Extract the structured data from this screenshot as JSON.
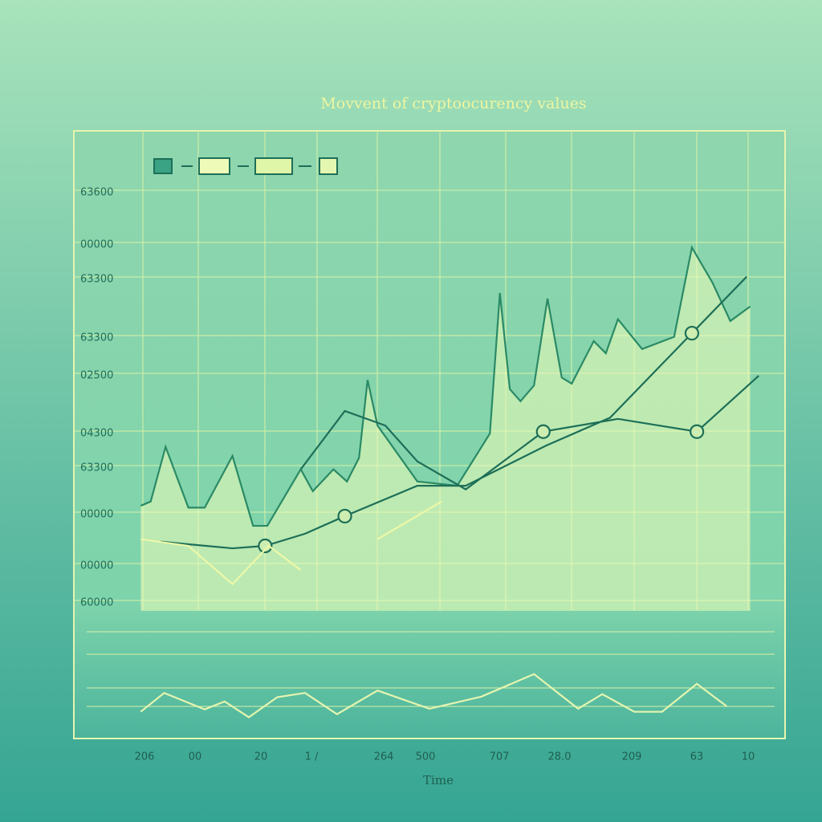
{
  "chart_data": {
    "type": "line",
    "title": "Movvent  of cryptoocurency values",
    "x_axis_label": "Time",
    "y_axis_labels": [
      "63600",
      "00000",
      "63300",
      "63300",
      "02500",
      "04300",
      "63300",
      "00000",
      "00000",
      "60000"
    ],
    "x_axis_labels": [
      "206",
      "00",
      "20",
      "1 /",
      "264",
      "500",
      "707",
      "28.0",
      "209",
      "63",
      "10"
    ],
    "xlim": [
      0,
      100
    ],
    "ylim": [
      0,
      100
    ],
    "series": [
      {
        "color": "#2a8a66",
        "fill": "#eefbb8",
        "x": [
          9.4,
          10.8,
          12.9,
          16.1,
          18.4,
          22.3,
          25.2,
          27.2,
          31.9,
          33.6,
          36.5,
          38.4,
          40.1,
          41.3,
          42.7,
          48.3,
          53.9,
          58.5,
          59.9,
          61.3,
          62.8,
          64.7,
          66.6,
          68.6,
          70.0,
          73.1,
          74.8,
          76.5,
          79.9,
          84.4,
          86.9,
          89.8,
          92.3,
          95.1
        ],
        "values": [
          38.3,
          39.0,
          48.0,
          38.0,
          38.0,
          46.5,
          35.0,
          35.0,
          44.3,
          40.7,
          44.3,
          42.3,
          46.2,
          59.0,
          51.5,
          42.3,
          41.6,
          50.2,
          73.3,
          57.5,
          55.5,
          58.1,
          72.4,
          59.4,
          58.4,
          65.4,
          63.4,
          69.0,
          64.1,
          66.1,
          80.8,
          75.0,
          68.7,
          71.1
        ]
      },
      {
        "color": "#1d6f58",
        "x": [
          12.2,
          22.3,
          26.9,
          32.5,
          38.1,
          48.3,
          55.1,
          66.4,
          75.4,
          86.9,
          94.6
        ],
        "values": [
          32.4,
          31.3,
          31.7,
          33.7,
          36.6,
          41.6,
          41.6,
          48.2,
          52.8,
          66.7,
          76.0
        ],
        "markers": [
          2,
          4,
          9
        ]
      },
      {
        "color": "#1d6f58",
        "x": [
          31.9,
          38.1,
          43.8,
          48.3,
          55.1,
          66.0,
          76.5,
          87.6,
          96.3
        ],
        "values": [
          44.3,
          53.9,
          51.5,
          45.6,
          41.0,
          50.5,
          52.6,
          50.5,
          59.7
        ],
        "markers": [
          5,
          7
        ]
      },
      {
        "color": "#ecf8a8",
        "x": [
          9.4,
          16.1,
          22.3,
          27.4,
          31.9,
          null,
          42.7,
          51.7
        ],
        "values": [
          32.8,
          31.7,
          25.4,
          31.7,
          27.7,
          null,
          32.8,
          39.0
        ]
      },
      {
        "color": "#e4f5b0",
        "x": [
          9.4,
          12.7,
          18.4,
          21.2,
          24.6,
          28.6,
          32.5,
          37.0,
          42.7,
          50.0,
          57.3,
          64.7,
          70.9,
          74.3,
          78.8,
          82.7,
          87.6,
          91.8
        ],
        "values": [
          4.4,
          7.5,
          4.8,
          6.1,
          3.5,
          6.8,
          7.5,
          4.0,
          7.9,
          4.9,
          6.9,
          10.6,
          4.9,
          7.3,
          4.4,
          4.4,
          9.0,
          5.3
        ]
      }
    ]
  }
}
